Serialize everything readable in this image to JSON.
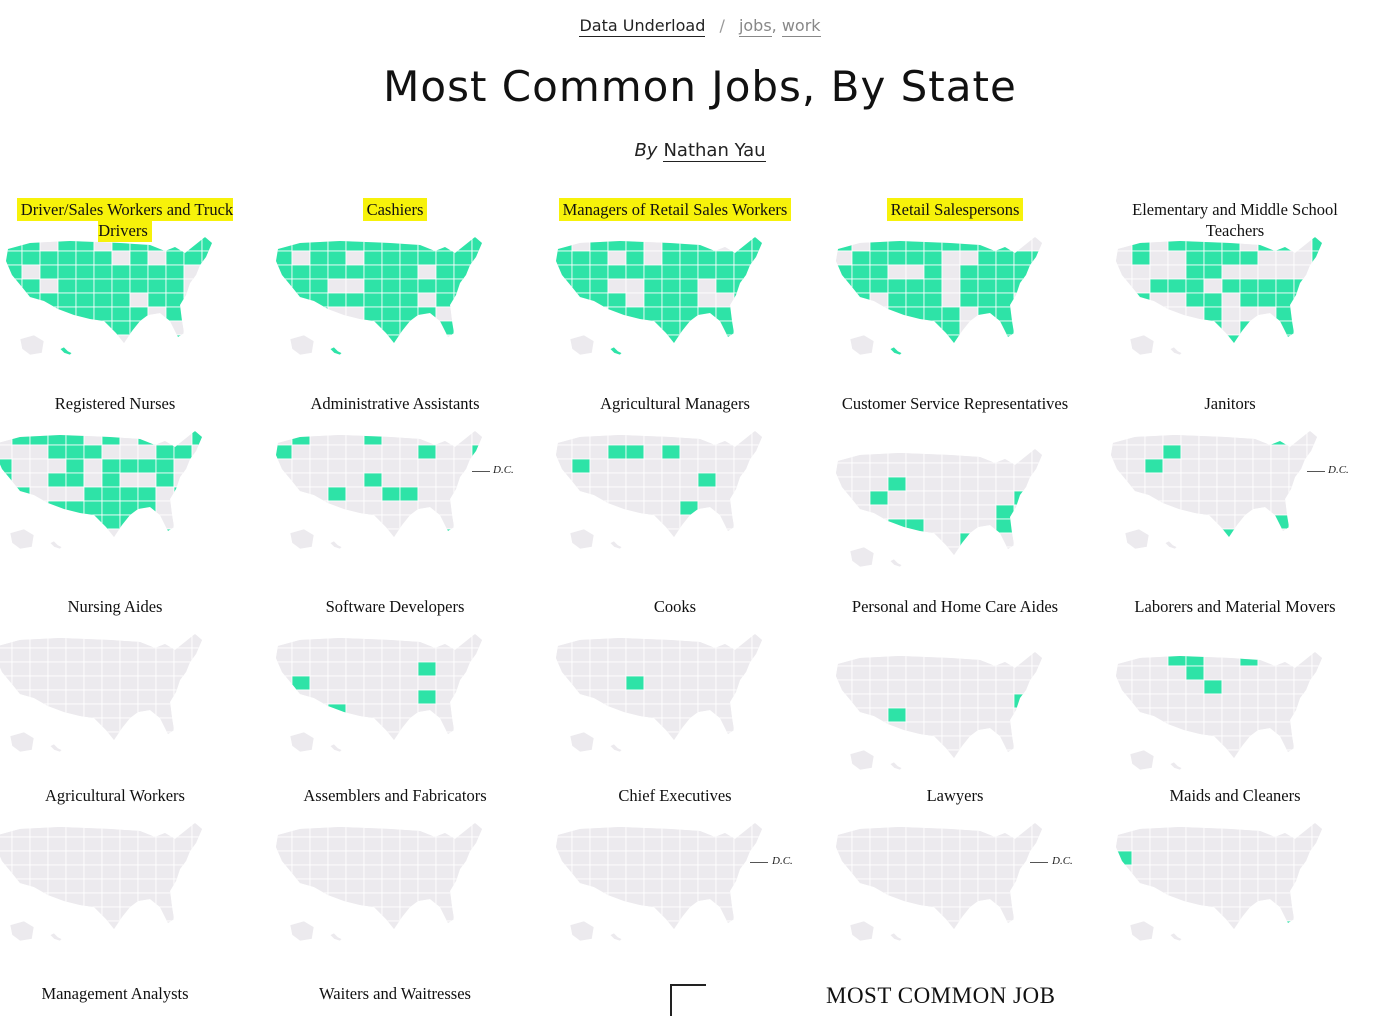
{
  "header": {
    "site_name": "Data Underload",
    "separator": "/",
    "tags": [
      "jobs",
      "work"
    ],
    "title": "Most Common Jobs, By State",
    "by_label": "By",
    "author": "Nathan Yau"
  },
  "colors": {
    "highlight_state": "#2ee3a7",
    "base_state": "#eceaee",
    "marker": "#f7f20a"
  },
  "panels": [
    {
      "label": "Driver/Sales Workers and Truck Drivers",
      "coverage": 0.85,
      "highlighted": true
    },
    {
      "label": "Cashiers",
      "coverage": 0.8,
      "highlighted": true
    },
    {
      "label": "Managers of Retail Sales Workers",
      "coverage": 0.85,
      "highlighted": true
    },
    {
      "label": "Retail Salespersons",
      "coverage": 0.7,
      "highlighted": true
    },
    {
      "label": "Elementary and Middle School Teachers",
      "coverage": 0.6,
      "highlighted": false
    },
    {
      "label": "Registered Nurses",
      "coverage": 0.5,
      "highlighted": false
    },
    {
      "label": "Administrative Assistants",
      "coverage": 0.15,
      "highlighted": false,
      "dc": "D.C."
    },
    {
      "label": "Agricultural Managers",
      "coverage": 0.15,
      "highlighted": false
    },
    {
      "label": "Customer Service Representatives",
      "coverage": 0.12,
      "highlighted": false
    },
    {
      "label": "Janitors",
      "coverage": 0.05,
      "highlighted": false,
      "dc": "D.C."
    },
    {
      "label": "Nursing Aides",
      "coverage": 0.03,
      "highlighted": false
    },
    {
      "label": "Software Developers",
      "coverage": 0.05,
      "highlighted": false
    },
    {
      "label": "Cooks",
      "coverage": 0.04,
      "highlighted": false
    },
    {
      "label": "Personal and Home Care Aides",
      "coverage": 0.05,
      "highlighted": false
    },
    {
      "label": "Laborers and Material Movers",
      "coverage": 0.03,
      "highlighted": false
    },
    {
      "label": "Agricultural Workers",
      "coverage": 0.02,
      "highlighted": false
    },
    {
      "label": "Assemblers and Fabricators",
      "coverage": 0.02,
      "highlighted": false
    },
    {
      "label": "Chief Executives",
      "coverage": 0.0,
      "highlighted": false,
      "dc": "D.C."
    },
    {
      "label": "Lawyers",
      "coverage": 0.0,
      "highlighted": false,
      "dc": "D.C."
    },
    {
      "label": "Maids and Cleaners",
      "coverage": 0.02,
      "highlighted": false
    },
    {
      "label": "Management Analysts",
      "highlighted": false
    },
    {
      "label": "Waiters and Waitresses",
      "highlighted": false
    }
  ],
  "legend": {
    "title": "MOST COMMON JOB"
  }
}
